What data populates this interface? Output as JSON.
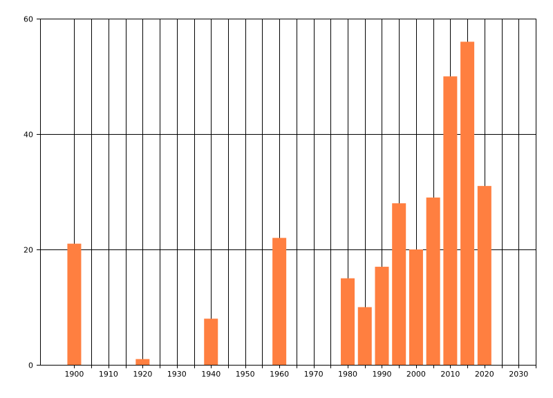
{
  "chart_data": {
    "type": "bar",
    "title": "",
    "xlabel": "",
    "ylabel": "",
    "x": [
      1900,
      1920,
      1940,
      1960,
      1980,
      1985,
      1990,
      1995,
      2000,
      2005,
      2010,
      2015,
      2020
    ],
    "values": [
      21,
      1,
      8,
      22,
      15,
      10,
      17,
      28,
      20,
      29,
      50,
      56,
      31
    ],
    "xlim": [
      1890,
      2035
    ],
    "ylim": [
      0,
      60
    ],
    "x_ticks": [
      1900,
      1910,
      1920,
      1930,
      1940,
      1950,
      1960,
      1970,
      1980,
      1990,
      2000,
      2010,
      2020,
      2030
    ],
    "y_ticks": [
      0,
      20,
      40,
      60
    ],
    "grid": true,
    "legend": "none",
    "bar_color": "#FF7F40"
  }
}
